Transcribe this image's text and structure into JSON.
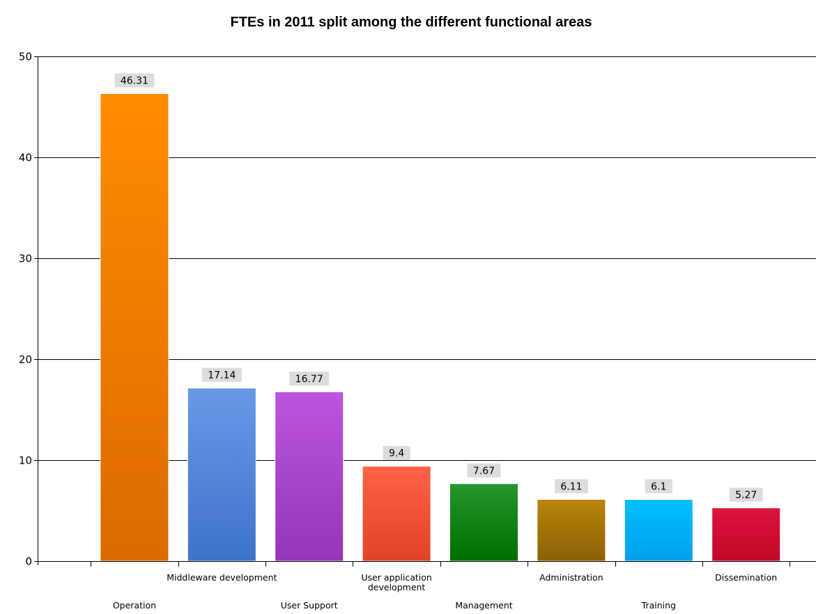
{
  "chart_data": {
    "type": "bar",
    "title": "FTEs in 2011 split among the different functional areas",
    "xlabel": "",
    "ylabel": "",
    "ylim": [
      0,
      50
    ],
    "yticks": [
      0,
      10,
      20,
      30,
      40,
      50
    ],
    "grid": true,
    "legend": "none",
    "categories": [
      [
        "Operation"
      ],
      [
        "Middleware development"
      ],
      [
        "User Support"
      ],
      [
        "User application",
        "development"
      ],
      [
        "Management"
      ],
      [
        "Administration"
      ],
      [
        "Training"
      ],
      [
        "Dissemination"
      ]
    ],
    "values": [
      46.31,
      17.14,
      16.77,
      9.4,
      7.67,
      6.11,
      6.1,
      5.27
    ],
    "data_labels": [
      "46.31",
      "17.14",
      "16.77",
      "9.4",
      "7.67",
      "6.11",
      "6.1",
      "5.27"
    ],
    "colors": [
      [
        "#ff8c00",
        "#dc6a00"
      ],
      [
        "#6799e8",
        "#3f73c9"
      ],
      [
        "#bb55dd",
        "#9535b8"
      ],
      [
        "#ff6347",
        "#df4327"
      ],
      [
        "#24962e",
        "#006e00"
      ],
      [
        "#b8860b",
        "#8a6004"
      ],
      [
        "#00bfff",
        "#00a0ec"
      ],
      [
        "#dc143c",
        "#c00828"
      ]
    ]
  }
}
